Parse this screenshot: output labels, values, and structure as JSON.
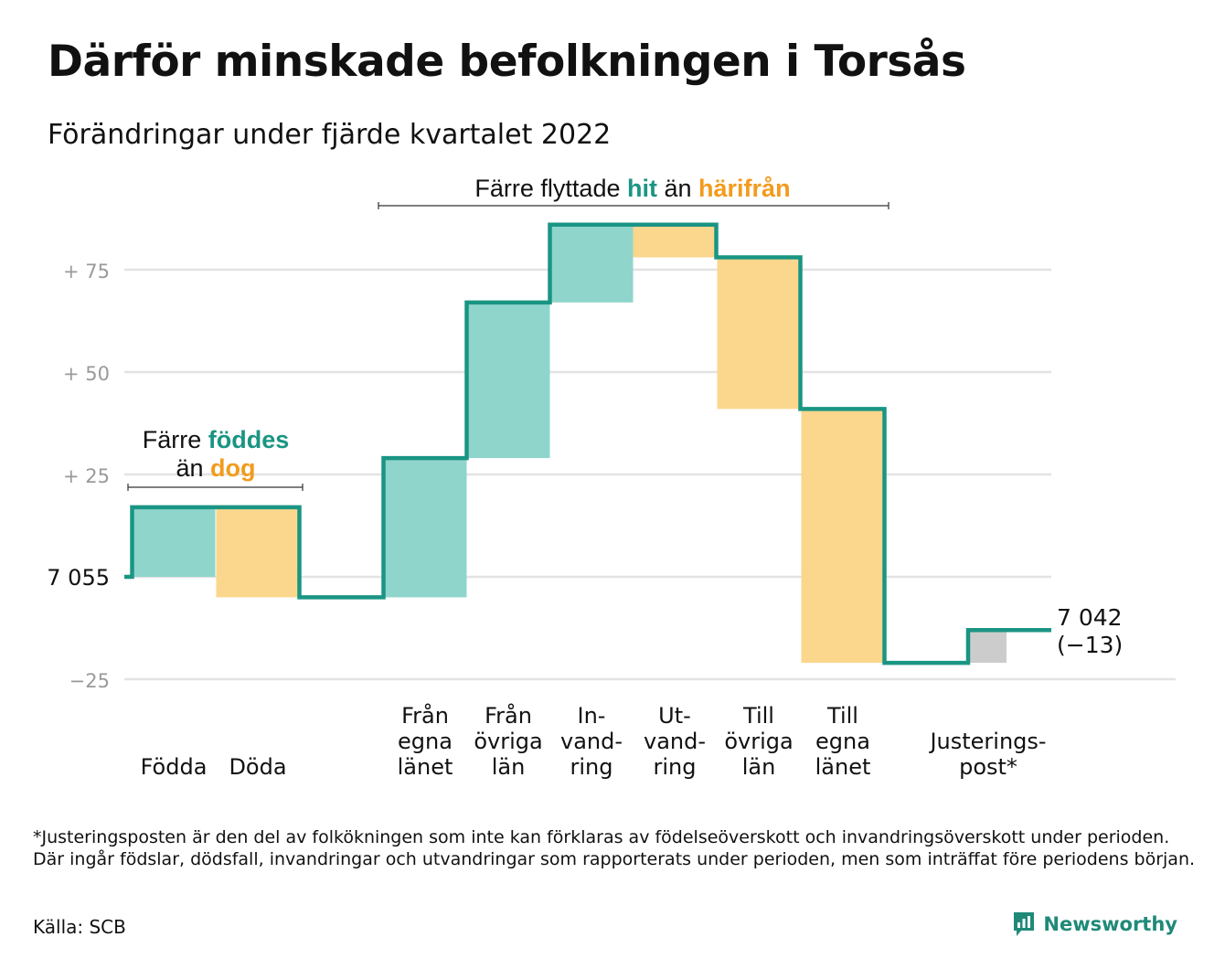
{
  "header": {
    "title": "Därför minskade befolkningen i Torsås",
    "subtitle": "Förändringar under fjärde kvartalet 2022"
  },
  "annotations": {
    "births_group": {
      "line1": "Färre ",
      "em1": "föddes",
      "line2": "än ",
      "em2": "dog"
    },
    "migration_group": {
      "pre": "Färre flyttade ",
      "em1": "hit",
      "mid": " än ",
      "em2": "härifrån"
    }
  },
  "end_label": {
    "value": "7 042",
    "change": "(−13)"
  },
  "start_label": "7 055",
  "footnote": "*Justeringsposten är den del av folkökningen som inte kan förklaras av födelseöverskott och invandringsöverskott under perioden. Där ingår födslar, dödsfall, invandringar och utvandringar som rapporterats under perioden, men som inträffat före periodens början.",
  "source": "Källa: SCB",
  "brand": {
    "name": "Newsworthy",
    "logo_icon": "bar-chart-speech-bubble-icon"
  },
  "colors": {
    "increase": "#8fd5cc",
    "decrease": "#fbd68d",
    "adjustment": "#cccccc",
    "line": "#1a9583",
    "teal_text": "#1a9583",
    "orange_text": "#f29b1d",
    "grid": "#e3e3e3",
    "axis_text": "#9a9a9a"
  },
  "chart_data": {
    "type": "waterfall",
    "start_value": 7055,
    "end_value": 7042,
    "net_change": -13,
    "y_axis": {
      "ticks": [
        {
          "value": -25,
          "label": "−25"
        },
        {
          "value": 0,
          "label": "7 055"
        },
        {
          "value": 25,
          "label": "+ 25"
        },
        {
          "value": 50,
          "label": "+ 50"
        },
        {
          "value": 75,
          "label": "+ 75"
        }
      ],
      "ylim": [
        -25,
        85
      ]
    },
    "grid": true,
    "steps": [
      {
        "key": "fodda",
        "label": [
          "Födda"
        ],
        "change": 17,
        "kind": "increase"
      },
      {
        "key": "doda",
        "label": [
          "Döda"
        ],
        "change": -22,
        "kind": "decrease"
      },
      {
        "key": "fran_egna",
        "label": [
          "Från",
          "egna",
          "länet"
        ],
        "change": 34,
        "kind": "increase"
      },
      {
        "key": "fran_ovriga",
        "label": [
          "Från",
          "övriga",
          "län"
        ],
        "change": 38,
        "kind": "increase"
      },
      {
        "key": "invandring",
        "label": [
          "In-",
          "vand-",
          "ring"
        ],
        "change": 19,
        "kind": "increase"
      },
      {
        "key": "utvandring",
        "label": [
          "Ut-",
          "vand-",
          "ring"
        ],
        "change": -8,
        "kind": "decrease"
      },
      {
        "key": "till_ovriga",
        "label": [
          "Till",
          "övriga",
          "län"
        ],
        "change": -37,
        "kind": "decrease"
      },
      {
        "key": "till_egna",
        "label": [
          "Till",
          "egna",
          "länet"
        ],
        "change": -62,
        "kind": "decrease"
      },
      {
        "key": "justering",
        "label": [
          "Justerings-",
          "post*"
        ],
        "change": 8,
        "kind": "adjustment"
      }
    ]
  }
}
